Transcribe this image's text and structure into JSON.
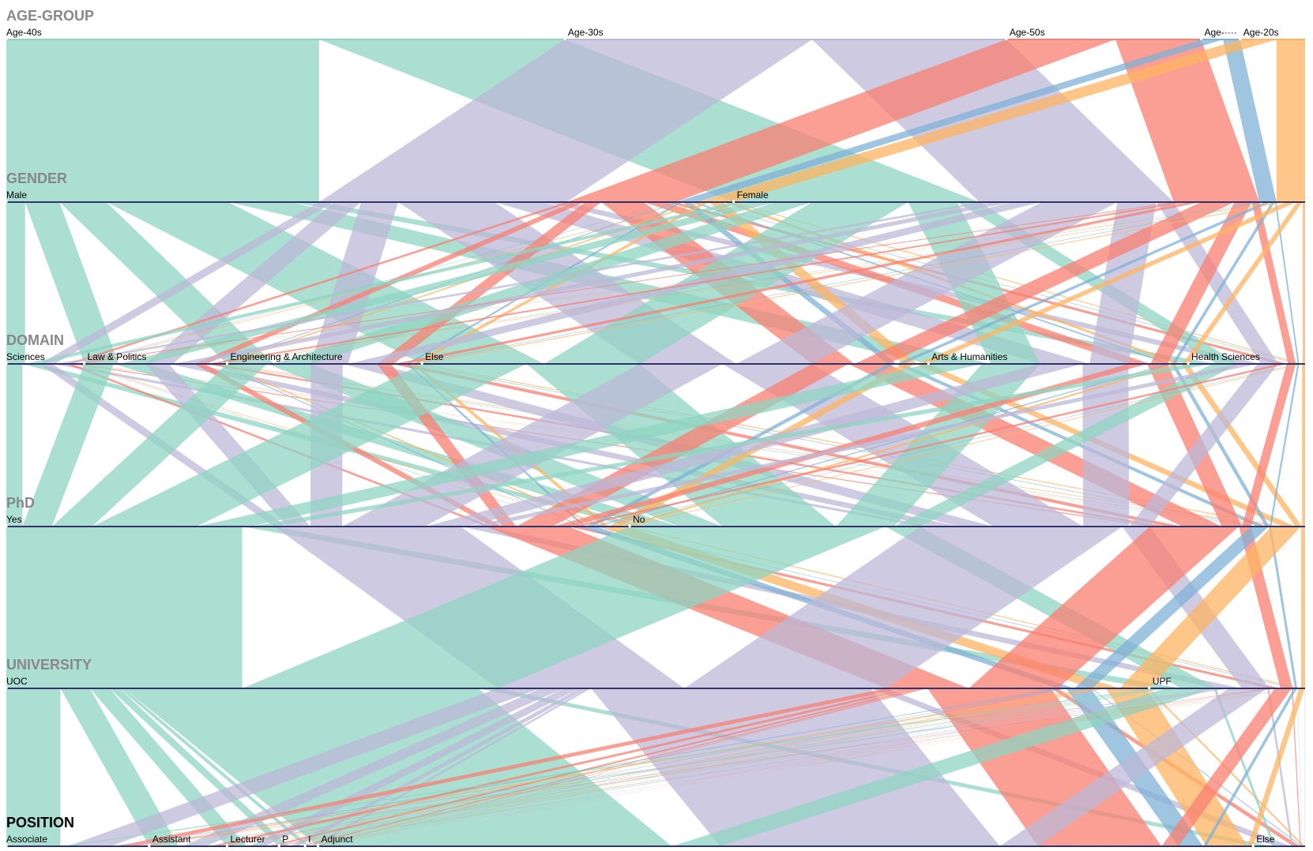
{
  "chart_data": {
    "type": "parallel-sets",
    "colors": [
      "#8fd4c1",
      "#bcb8d8",
      "#f97f72",
      "#7fb1d5",
      "#fdb462"
    ],
    "dimensions": [
      {
        "name": "AGE-GROUP",
        "categories": [
          "Age-40s",
          "Age-30s",
          "Age-50s",
          "Age-····",
          "Age-20s"
        ],
        "values": [
          43,
          34,
          15,
          3,
          5
        ]
      },
      {
        "name": "GENDER",
        "categories": [
          "Male",
          "Female"
        ],
        "values": [
          56,
          44
        ]
      },
      {
        "name": "DOMAIN",
        "categories": [
          "Sciences",
          "Law & Politics",
          "Engineering & Architecture",
          "Else",
          "Arts & Humanities",
          "Health Sciences"
        ],
        "values": [
          6,
          11,
          15,
          39,
          20,
          9
        ]
      },
      {
        "name": "PhD",
        "categories": [
          "Yes",
          "No"
        ],
        "values": [
          48,
          52
        ]
      },
      {
        "name": "UNIVERSITY",
        "categories": [
          "UOC",
          "UPF"
        ],
        "values": [
          88,
          12
        ]
      },
      {
        "name": "POSITION",
        "categories": [
          "Associate",
          "Assistant",
          "Lecturer",
          "P",
          "I",
          "Adjunct",
          "Else"
        ],
        "values": [
          11,
          6,
          4,
          2,
          1,
          72,
          4
        ]
      }
    ]
  }
}
